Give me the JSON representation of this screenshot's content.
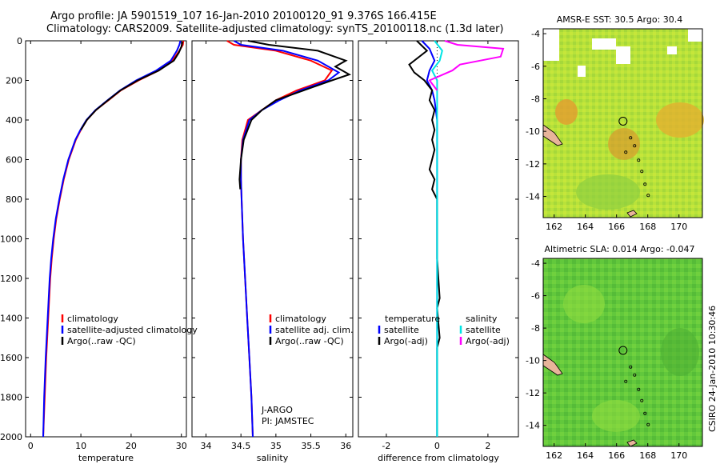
{
  "titles": {
    "line1": "Argo profile: JA 5901519_107 16-Jan-2010 20100120_91 9.376S 166.415E",
    "line2": "Climatology: CARS2009. Satellite-adjusted climatology: synTS_20100118.nc (1.3d later)"
  },
  "stamp": "CSIRO 24-Jan-2010 10:30:46",
  "colors": {
    "climatology": "#ff0000",
    "satellite": "#0000ff",
    "argo": "#000000",
    "sal_satellite": "#00e5e5",
    "sal_argo": "#ff00ff"
  },
  "chart_data": [
    {
      "type": "line",
      "xlabel": "temperature",
      "ylabel": "",
      "xlim": [
        -1,
        31
      ],
      "ylim": [
        2000,
        0
      ],
      "xticks": [
        0,
        10,
        20,
        30
      ],
      "yticks": [
        0,
        200,
        400,
        600,
        800,
        1000,
        1200,
        1400,
        1600,
        1800,
        2000
      ],
      "legend": {
        "entries": [
          "climatology",
          "satellite-adjusted climatology",
          "Argo(..raw -QC)"
        ]
      },
      "series": [
        {
          "name": "climatology",
          "color": "#ff0000",
          "points": [
            [
              30.4,
              0
            ],
            [
              30.3,
              20
            ],
            [
              29.6,
              50
            ],
            [
              28.2,
              100
            ],
            [
              25.5,
              150
            ],
            [
              21.5,
              200
            ],
            [
              18,
              250
            ],
            [
              15.5,
              300
            ],
            [
              13,
              350
            ],
            [
              11.2,
              400
            ],
            [
              10,
              450
            ],
            [
              9,
              500
            ],
            [
              7.6,
              600
            ],
            [
              6.6,
              700
            ],
            [
              5.8,
              800
            ],
            [
              5.1,
              900
            ],
            [
              4.6,
              1000
            ],
            [
              4.2,
              1100
            ],
            [
              3.9,
              1200
            ],
            [
              3.5,
              1400
            ],
            [
              3.1,
              1600
            ],
            [
              2.8,
              1800
            ],
            [
              2.5,
              2000
            ]
          ]
        },
        {
          "name": "satellite-adjusted climatology",
          "color": "#0000ff",
          "points": [
            [
              29.8,
              0
            ],
            [
              29.6,
              20
            ],
            [
              29.1,
              50
            ],
            [
              27.9,
              100
            ],
            [
              25,
              150
            ],
            [
              21,
              200
            ],
            [
              17.8,
              250
            ],
            [
              15.3,
              300
            ],
            [
              12.9,
              350
            ],
            [
              11.1,
              400
            ],
            [
              9.9,
              450
            ],
            [
              8.9,
              500
            ],
            [
              7.5,
              600
            ],
            [
              6.5,
              700
            ],
            [
              5.7,
              800
            ],
            [
              5,
              900
            ],
            [
              4.5,
              1000
            ],
            [
              4.1,
              1100
            ],
            [
              3.8,
              1200
            ],
            [
              3.4,
              1400
            ],
            [
              3,
              1600
            ],
            [
              2.7,
              1800
            ],
            [
              2.5,
              2000
            ]
          ]
        },
        {
          "name": "Argo(..raw -QC)",
          "color": "#000000",
          "points": [
            [
              30.2,
              5
            ],
            [
              30,
              30
            ],
            [
              29.5,
              60
            ],
            [
              28.5,
              100
            ],
            [
              25.5,
              150
            ],
            [
              21.3,
              200
            ],
            [
              17.9,
              250
            ],
            [
              15.4,
              300
            ],
            [
              13,
              350
            ],
            [
              11.2,
              400
            ],
            [
              10,
              450
            ]
          ]
        }
      ]
    },
    {
      "type": "line",
      "xlabel": "salinity",
      "ylabel": "",
      "xlim": [
        33.8,
        36.1
      ],
      "ylim": [
        2000,
        0
      ],
      "xticks": [
        34,
        34.5,
        35,
        35.5,
        36
      ],
      "yticks": [
        0,
        200,
        400,
        600,
        800,
        1000,
        1200,
        1400,
        1600,
        1800,
        2000
      ],
      "legend": {
        "entries": [
          "climatology",
          "satellite adj. clim.",
          "Argo(..raw -QC)"
        ]
      },
      "annotation": [
        "J-ARGO",
        "PI: JAMSTEC"
      ],
      "series": [
        {
          "name": "climatology",
          "color": "#ff0000",
          "points": [
            [
              34.3,
              0
            ],
            [
              34.4,
              20
            ],
            [
              35,
              50
            ],
            [
              35.5,
              100
            ],
            [
              35.8,
              150
            ],
            [
              35.7,
              200
            ],
            [
              35.3,
              250
            ],
            [
              35,
              300
            ],
            [
              34.8,
              350
            ],
            [
              34.6,
              400
            ],
            [
              34.52,
              500
            ],
            [
              34.5,
              600
            ],
            [
              34.5,
              700
            ],
            [
              34.51,
              800
            ],
            [
              34.53,
              1000
            ],
            [
              34.56,
              1200
            ],
            [
              34.59,
              1400
            ],
            [
              34.62,
              1600
            ],
            [
              34.65,
              1800
            ],
            [
              34.67,
              2000
            ]
          ]
        },
        {
          "name": "satellite adj. clim.",
          "color": "#0000ff",
          "points": [
            [
              34.4,
              0
            ],
            [
              34.5,
              20
            ],
            [
              35.1,
              50
            ],
            [
              35.6,
              100
            ],
            [
              35.9,
              160
            ],
            [
              35.75,
              200
            ],
            [
              35.35,
              250
            ],
            [
              35.05,
              300
            ],
            [
              34.8,
              350
            ],
            [
              34.62,
              400
            ],
            [
              34.53,
              500
            ],
            [
              34.5,
              600
            ],
            [
              34.5,
              700
            ],
            [
              34.51,
              800
            ],
            [
              34.53,
              1000
            ],
            [
              34.56,
              1200
            ],
            [
              34.59,
              1400
            ],
            [
              34.62,
              1600
            ],
            [
              34.65,
              1800
            ],
            [
              34.67,
              2000
            ]
          ]
        },
        {
          "name": "Argo(..raw -QC)",
          "color": "#000000",
          "points": [
            [
              34.6,
              0
            ],
            [
              34.9,
              20
            ],
            [
              35.6,
              50
            ],
            [
              36,
              100
            ],
            [
              35.85,
              130
            ],
            [
              36.05,
              170
            ],
            [
              35.8,
              200
            ],
            [
              35.4,
              250
            ],
            [
              35,
              300
            ],
            [
              34.8,
              350
            ],
            [
              34.65,
              400
            ],
            [
              34.54,
              500
            ],
            [
              34.5,
              600
            ],
            [
              34.48,
              700
            ],
            [
              34.49,
              750
            ]
          ]
        }
      ]
    },
    {
      "type": "line",
      "xlabel": "difference from climatology",
      "ylabel": "",
      "xlim": [
        -3.1,
        3.2
      ],
      "ylim": [
        2000,
        0
      ],
      "xticks": [
        -2,
        0,
        2
      ],
      "yticks": [
        0,
        200,
        400,
        600,
        800,
        1000,
        1200,
        1400,
        1600,
        1800,
        2000
      ],
      "legend": {
        "headers": [
          "temperature",
          "salinity"
        ],
        "entries": [
          "satellite",
          "Argo(-adj)",
          "satellite",
          "Argo(-adj)"
        ]
      },
      "series": [
        {
          "name": "temperature satellite",
          "color": "#0000ff",
          "points": [
            [
              -0.6,
              0
            ],
            [
              -0.3,
              40
            ],
            [
              -0.1,
              100
            ],
            [
              -0.3,
              150
            ],
            [
              -0.4,
              200
            ],
            [
              -0.2,
              250
            ],
            [
              -0.1,
              300
            ],
            [
              0,
              400
            ],
            [
              0,
              1000
            ],
            [
              0,
              2000
            ]
          ]
        },
        {
          "name": "temperature Argo(-adj)",
          "color": "#000000",
          "points": [
            [
              -0.8,
              0
            ],
            [
              -0.4,
              50
            ],
            [
              -1.1,
              120
            ],
            [
              -0.9,
              160
            ],
            [
              -0.5,
              200
            ],
            [
              -0.2,
              250
            ],
            [
              -0.3,
              300
            ],
            [
              -0.1,
              350
            ],
            [
              -0.2,
              400
            ],
            [
              -0.1,
              450
            ],
            [
              -0.2,
              500
            ],
            [
              -0.1,
              550
            ],
            [
              -0.2,
              600
            ],
            [
              -0.3,
              650
            ],
            [
              -0.1,
              700
            ],
            [
              -0.2,
              750
            ],
            [
              0,
              800
            ],
            [
              0,
              1100
            ],
            [
              0.1,
              1300
            ],
            [
              0,
              1350
            ],
            [
              0.1,
              1500
            ],
            [
              0,
              1550
            ],
            [
              0,
              2000
            ]
          ]
        },
        {
          "name": "salinity satellite",
          "color": "#00e5e5",
          "points": [
            [
              -0.1,
              0
            ],
            [
              0.2,
              50
            ],
            [
              0.1,
              100
            ],
            [
              -0.2,
              150
            ],
            [
              0,
              200
            ],
            [
              0,
              300
            ],
            [
              0,
              2000
            ]
          ]
        },
        {
          "name": "salinity Argo(-adj)",
          "color": "#ff00ff",
          "points": [
            [
              0.3,
              0
            ],
            [
              0.8,
              20
            ],
            [
              2.6,
              40
            ],
            [
              2.5,
              80
            ],
            [
              0.9,
              120
            ],
            [
              0.6,
              150
            ],
            [
              -0.3,
              200
            ],
            [
              0,
              250
            ]
          ]
        }
      ]
    },
    {
      "type": "heatmap",
      "title": "AMSR-E SST: 30.5 Argo: 30.4",
      "xticks": [
        162,
        164,
        166,
        168,
        170
      ],
      "yticks": [
        -4,
        -6,
        -8,
        -10,
        -12,
        -14
      ],
      "xlim": [
        161.3,
        171.5
      ],
      "ylim": [
        -15.3,
        -3.7
      ],
      "marker": {
        "lon": 166.415,
        "lat": -9.376
      }
    },
    {
      "type": "heatmap",
      "title": "Altimetric SLA: 0.014 Argo: -0.047",
      "xticks": [
        162,
        164,
        166,
        168,
        170
      ],
      "yticks": [
        -4,
        -6,
        -8,
        -10,
        -12,
        -14
      ],
      "xlim": [
        161.3,
        171.5
      ],
      "ylim": [
        -15.3,
        -3.7
      ],
      "marker": {
        "lon": 166.415,
        "lat": -9.376
      }
    }
  ]
}
